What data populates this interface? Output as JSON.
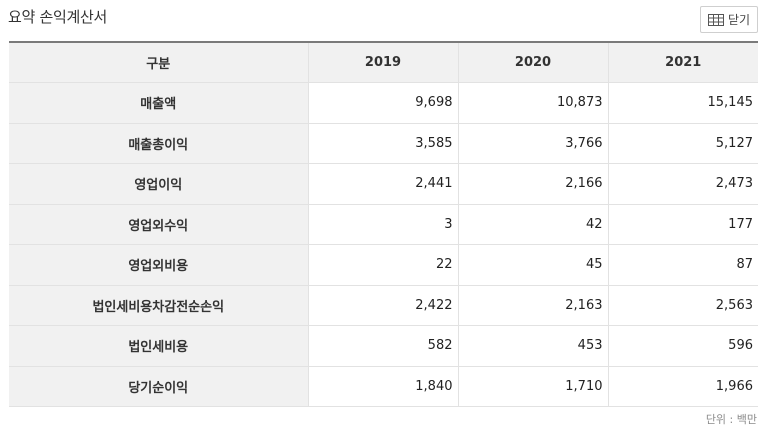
{
  "header": {
    "title": "요약 손익계산서",
    "close_label": "닫기"
  },
  "table": {
    "columns": [
      "구분",
      "2019",
      "2020",
      "2021"
    ],
    "rows": [
      {
        "label": "매출액",
        "values": [
          "9,698",
          "10,873",
          "15,145"
        ]
      },
      {
        "label": "매출총이익",
        "values": [
          "3,585",
          "3,766",
          "5,127"
        ]
      },
      {
        "label": "영업이익",
        "values": [
          "2,441",
          "2,166",
          "2,473"
        ]
      },
      {
        "label": "영업외수익",
        "values": [
          "3",
          "42",
          "177"
        ]
      },
      {
        "label": "영업외비용",
        "values": [
          "22",
          "45",
          "87"
        ]
      },
      {
        "label": "법인세비용차감전순손익",
        "values": [
          "2,422",
          "2,163",
          "2,563"
        ]
      },
      {
        "label": "법인세비용",
        "values": [
          "582",
          "453",
          "596"
        ]
      },
      {
        "label": "당기순이익",
        "values": [
          "1,840",
          "1,710",
          "1,966"
        ]
      }
    ]
  },
  "footer": {
    "unit": "단위 : 백만"
  }
}
